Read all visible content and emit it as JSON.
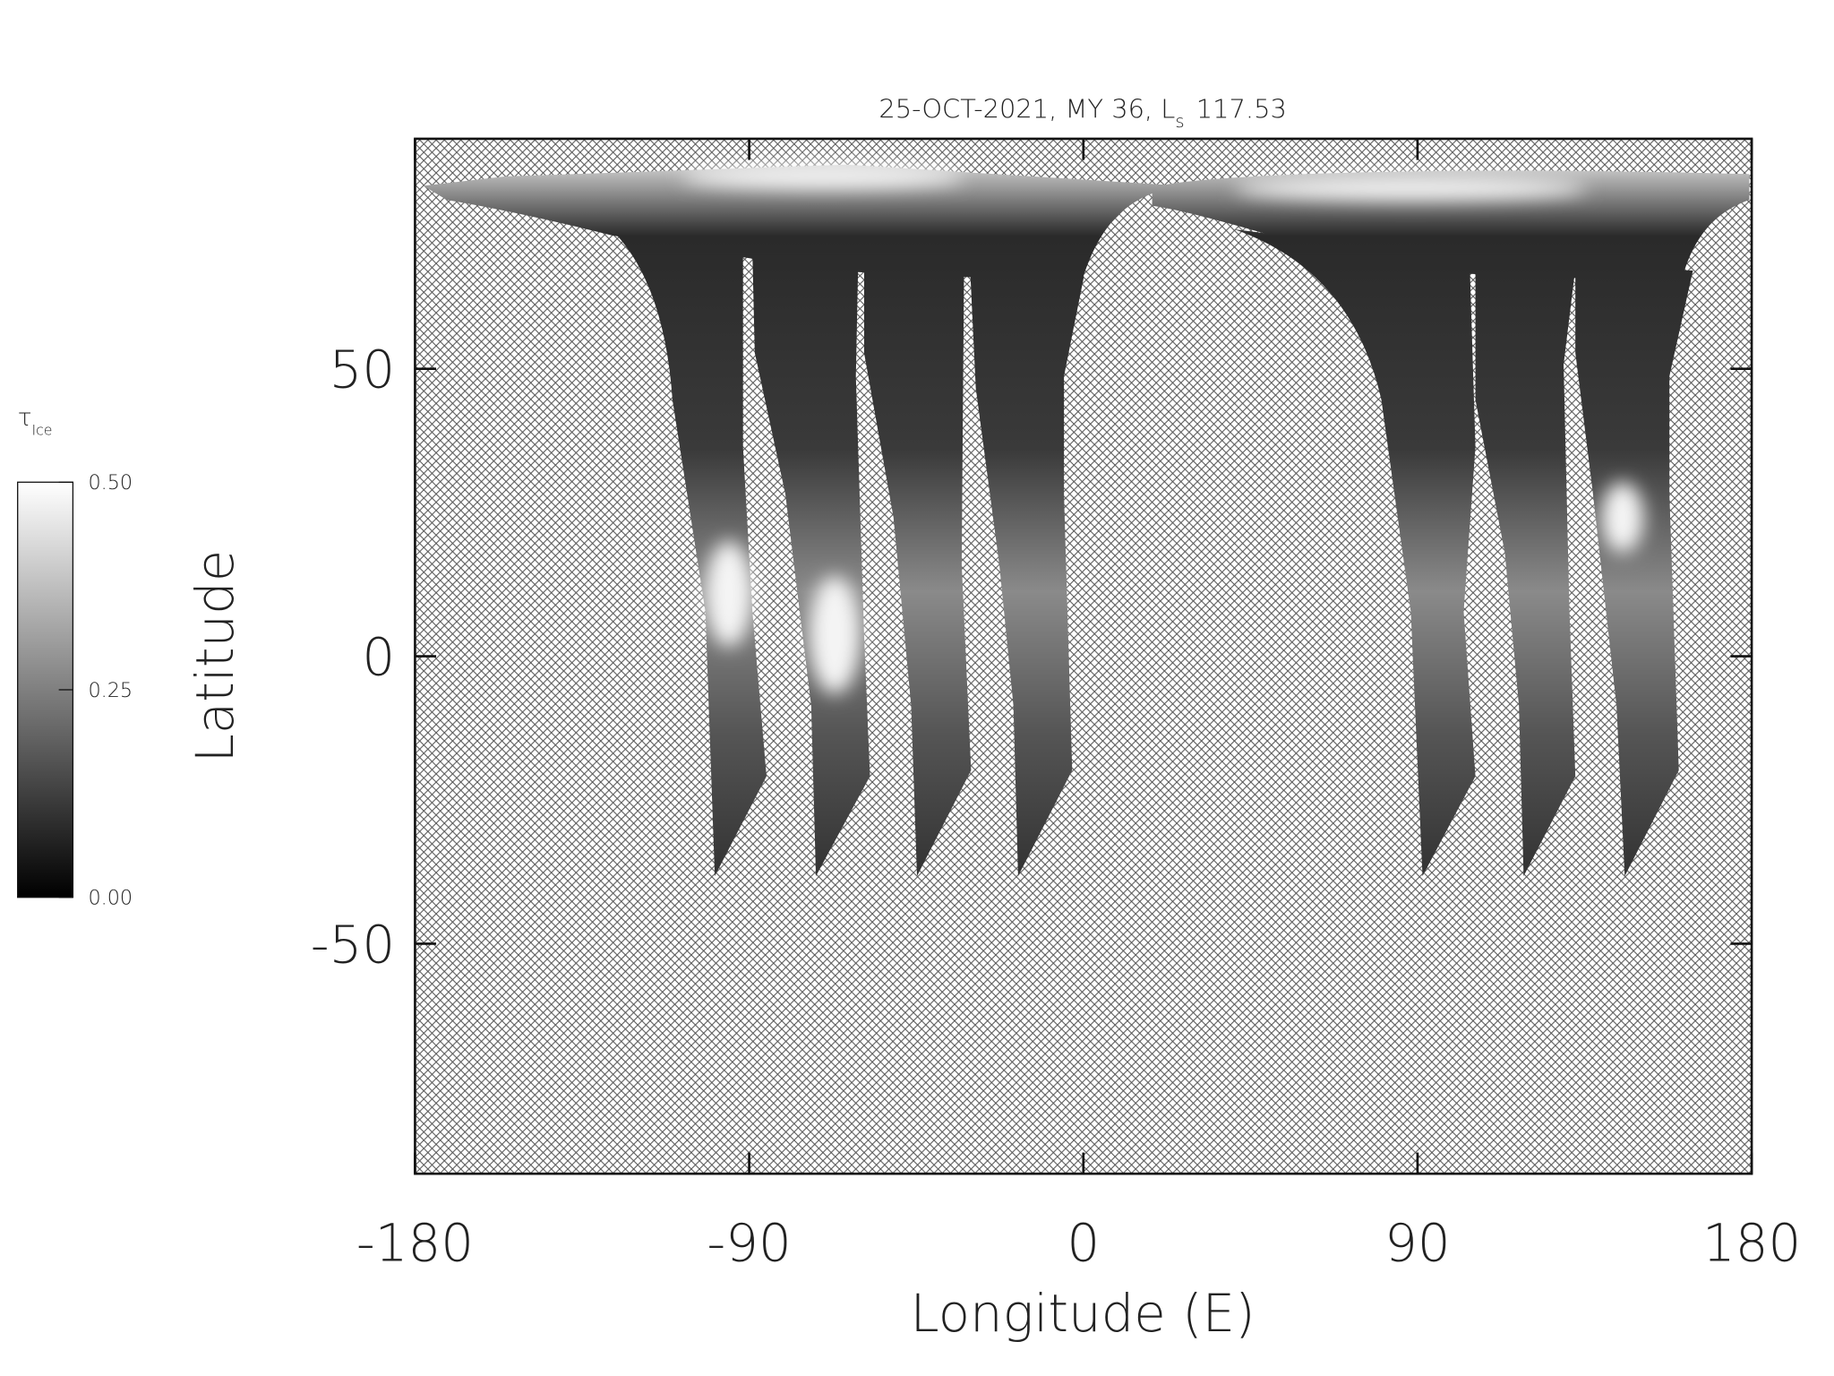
{
  "chart_data": {
    "type": "map",
    "title": "25-OCT-2021, MY 36,  L",
    "title_subscript": "s",
    "title_value": 117.53,
    "x_label": "Longitude (E)",
    "y_label": "Latitude",
    "xlim": [
      -180,
      180
    ],
    "xticks": [
      -180,
      -90,
      0,
      90,
      180
    ],
    "ylim": [
      -90,
      90
    ],
    "yticks": [
      -50,
      0,
      50
    ],
    "colorbar": {
      "label": "τ",
      "label_subscript": "Ice",
      "lim": [
        0,
        0.5
      ],
      "ticks": [
        {
          "value": 0,
          "label": "0.00"
        },
        {
          "value": 0.25,
          "label": "0.25"
        },
        {
          "value": 0.5,
          "label": "0.50"
        }
      ]
    }
  }
}
